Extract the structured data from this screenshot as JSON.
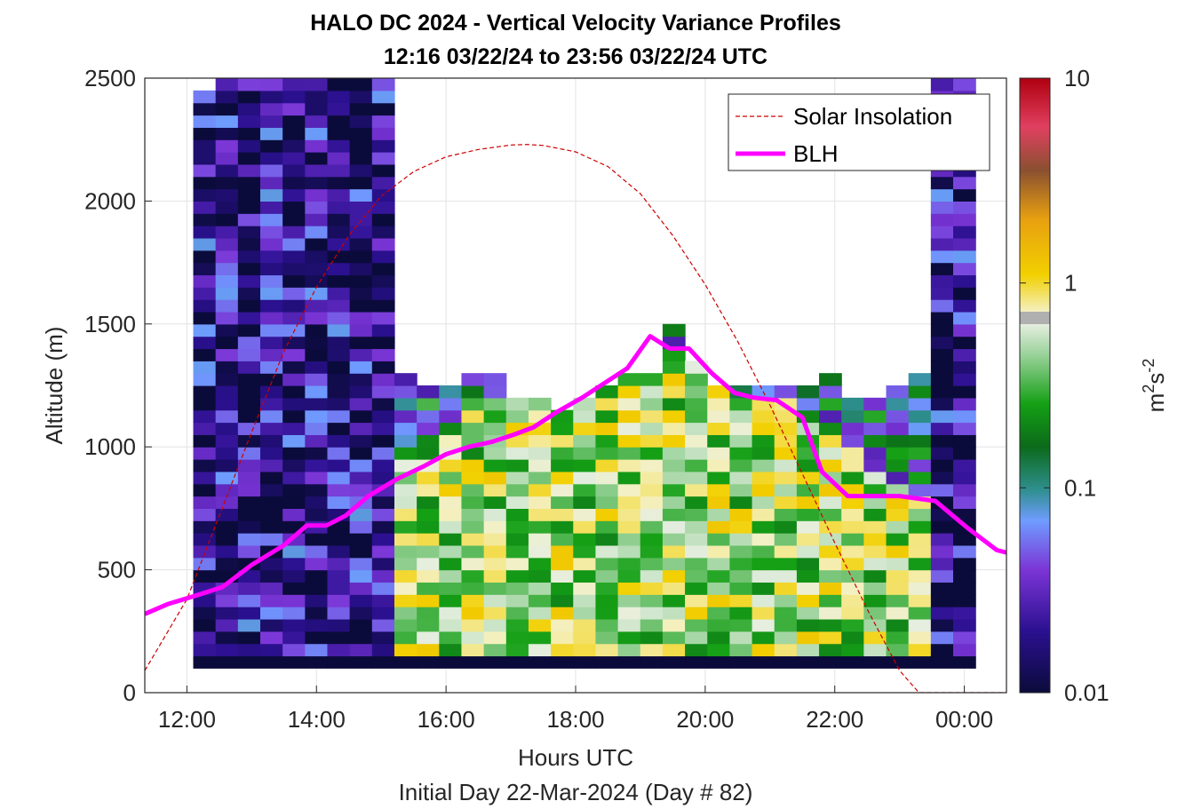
{
  "chart_data": {
    "type": "heatmap",
    "title": "HALO DC 2024 - Vertical Velocity Variance Profiles",
    "subtitle": "12:16 03/22/24 to 23:56 03/22/24  UTC",
    "xlabel": "Hours UTC",
    "xlabel2": "Initial Day 22-Mar-2024 (Day # 82)",
    "ylabel": "Altitude (m)",
    "xlim": [
      11.35,
      24.65
    ],
    "ylim": [
      0,
      2500
    ],
    "x_ticks": [
      12,
      14,
      16,
      18,
      20,
      22,
      24
    ],
    "x_tick_labels": [
      "12:00",
      "14:00",
      "16:00",
      "18:00",
      "20:00",
      "22:00",
      "00:00"
    ],
    "y_ticks": [
      0,
      500,
      1000,
      1500,
      2000,
      2500
    ],
    "y_tick_labels": [
      "0",
      "500",
      "1000",
      "1500",
      "2000",
      "2500"
    ],
    "grid": true,
    "legend_position": "top-right",
    "colorbar": {
      "label_base": "m",
      "label_sup1": "2",
      "label_mid": "s",
      "label_sup2": "-2",
      "scale": "log",
      "range": [
        0.01,
        10
      ],
      "ticks": [
        0.01,
        0.1,
        1,
        10
      ],
      "tick_labels": [
        "0.01",
        "0.1",
        "1",
        "10"
      ]
    },
    "heatmap": {
      "time_start": 12.27,
      "time_end": 24.0,
      "n_time": 35,
      "bottom_alt": 100,
      "bin_height": 50,
      "tops": [
        2450,
        2500,
        2500,
        2500,
        2500,
        2500,
        2500,
        2500,
        2500,
        1300,
        1250,
        1250,
        1300,
        1300,
        1200,
        1200,
        1150,
        1200,
        1250,
        1300,
        1300,
        1500,
        1350,
        1250,
        1250,
        1250,
        1250,
        1250,
        1300,
        1200,
        1200,
        1250,
        1300,
        2500,
        2500
      ],
      "blh_index": [
        10,
        8,
        10,
        12,
        13,
        14,
        16,
        18,
        18,
        18,
        19,
        20,
        21,
        22,
        23,
        22,
        22,
        23,
        24,
        25,
        26,
        26,
        25,
        24,
        22,
        22,
        22,
        21,
        20,
        18,
        16,
        15,
        14,
        13,
        12
      ],
      "low_value": 0.5,
      "high_value": 0.08,
      "night_value": 0.015,
      "bottom_value": 0.01
    },
    "series": [
      {
        "name": "Solar Insolation",
        "style": "dashed",
        "color": "#cc0000",
        "x": [
          11.35,
          12.0,
          12.5,
          13.0,
          13.5,
          14.0,
          14.5,
          15.0,
          15.5,
          16.0,
          16.5,
          17.0,
          17.25,
          17.5,
          18.0,
          18.5,
          19.0,
          19.5,
          20.0,
          20.5,
          21.0,
          21.5,
          22.0,
          22.5,
          23.0,
          23.3,
          23.5,
          24.65
        ],
        "y": [
          90,
          380,
          720,
          1060,
          1390,
          1650,
          1860,
          2020,
          2120,
          2180,
          2210,
          2228,
          2230,
          2226,
          2200,
          2140,
          2030,
          1860,
          1660,
          1430,
          1170,
          890,
          610,
          340,
          90,
          0,
          0,
          0
        ]
      },
      {
        "name": "BLH",
        "style": "solid",
        "color": "#ff00ff",
        "x": [
          11.35,
          11.7,
          12.2,
          12.55,
          13.0,
          13.5,
          13.85,
          14.15,
          14.45,
          14.8,
          15.25,
          15.65,
          16.0,
          16.35,
          16.7,
          17.05,
          17.35,
          17.7,
          18.1,
          18.45,
          18.8,
          19.15,
          19.45,
          19.75,
          20.1,
          20.45,
          20.75,
          21.1,
          21.5,
          21.8,
          22.2,
          22.5,
          23.0,
          23.55,
          24.05,
          24.5,
          24.65
        ],
        "y": [
          320,
          360,
          400,
          430,
          520,
          600,
          680,
          680,
          720,
          800,
          870,
          920,
          970,
          1000,
          1020,
          1050,
          1080,
          1140,
          1200,
          1260,
          1320,
          1450,
          1400,
          1400,
          1300,
          1220,
          1200,
          1190,
          1120,
          900,
          800,
          800,
          800,
          780,
          670,
          580,
          570
        ]
      }
    ]
  }
}
